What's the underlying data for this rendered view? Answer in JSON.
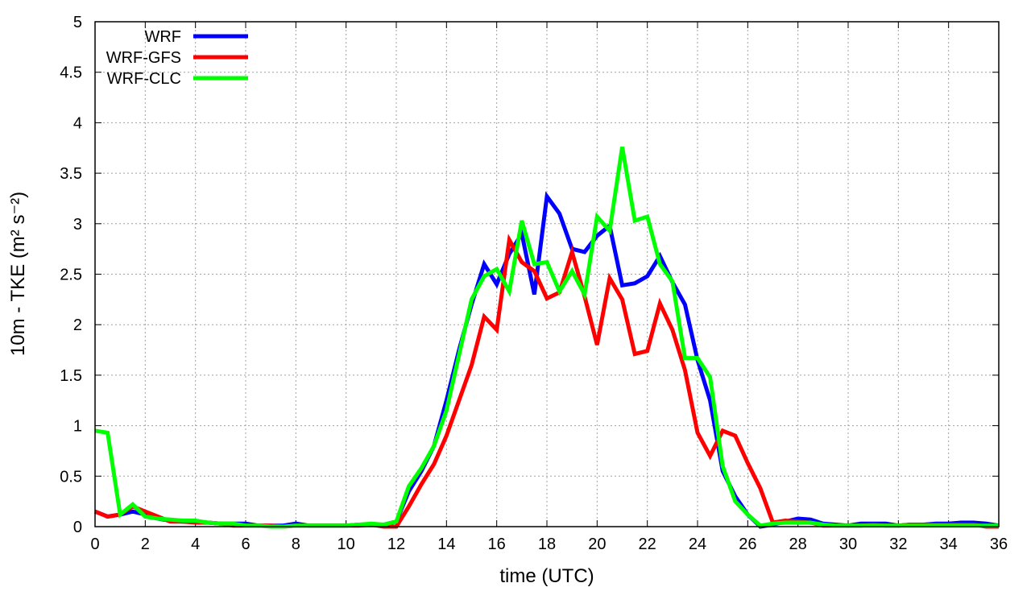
{
  "chart_data": {
    "type": "line",
    "xlabel": "time (UTC)",
    "ylabel": "10m - TKE (m² s⁻²)",
    "xlim": [
      0,
      36
    ],
    "ylim": [
      0,
      5
    ],
    "xticks": [
      0,
      2,
      4,
      6,
      8,
      10,
      12,
      14,
      16,
      18,
      20,
      22,
      24,
      26,
      28,
      30,
      32,
      34,
      36
    ],
    "yticks": [
      "0",
      "0.5",
      "1",
      "1.5",
      "2",
      "2.5",
      "3",
      "3.5",
      "4",
      "4.5",
      "5"
    ],
    "grid": true,
    "legend_position": "top-left",
    "x_step": 0.5,
    "series": [
      {
        "name": "WRF",
        "color": "#0000ff",
        "values": [
          0.15,
          0.1,
          0.12,
          0.15,
          0.12,
          0.08,
          0.06,
          0.05,
          0.05,
          0.04,
          0.03,
          0.03,
          0.03,
          0.01,
          0.01,
          0.01,
          0.03,
          0.01,
          0.01,
          0.01,
          0.01,
          0.02,
          0.02,
          0.02,
          0.05,
          0.35,
          0.55,
          0.8,
          1.25,
          1.75,
          2.2,
          2.6,
          2.4,
          2.7,
          2.9,
          2.3,
          3.27,
          3.1,
          2.75,
          2.72,
          2.88,
          2.98,
          2.39,
          2.41,
          2.48,
          2.68,
          2.42,
          2.2,
          1.65,
          1.25,
          0.55,
          0.3,
          0.12,
          0.0,
          0.02,
          0.05,
          0.08,
          0.07,
          0.03,
          0.02,
          0.01,
          0.03,
          0.03,
          0.03,
          0.01,
          0.02,
          0.02,
          0.03,
          0.03,
          0.04,
          0.04,
          0.03,
          0.01
        ]
      },
      {
        "name": "WRF-GFS",
        "color": "#ff0000",
        "values": [
          0.15,
          0.1,
          0.12,
          0.2,
          0.15,
          0.1,
          0.05,
          0.05,
          0.04,
          0.04,
          0.03,
          0.01,
          0.01,
          0.01,
          0.01,
          0.0,
          0.01,
          0.01,
          0.01,
          0.01,
          0.01,
          0.01,
          0.02,
          0.0,
          0.0,
          0.2,
          0.42,
          0.62,
          0.9,
          1.25,
          1.6,
          2.08,
          1.95,
          2.84,
          2.62,
          2.53,
          2.26,
          2.32,
          2.72,
          2.28,
          1.8,
          2.46,
          2.25,
          1.71,
          1.74,
          2.21,
          1.95,
          1.55,
          0.93,
          0.7,
          0.95,
          0.9,
          0.63,
          0.38,
          0.04,
          0.06,
          0.05,
          0.04,
          0.01,
          0.01,
          0.01,
          0.01,
          0.02,
          0.01,
          0.01,
          0.02,
          0.02,
          0.02,
          0.02,
          0.02,
          0.02,
          0.0,
          0.0
        ]
      },
      {
        "name": "WRF-CLC",
        "color": "#00ff00",
        "values": [
          0.95,
          0.93,
          0.12,
          0.22,
          0.1,
          0.08,
          0.07,
          0.06,
          0.06,
          0.04,
          0.03,
          0.03,
          0.01,
          0.01,
          0.0,
          0.0,
          0.01,
          0.01,
          0.01,
          0.01,
          0.01,
          0.02,
          0.03,
          0.02,
          0.05,
          0.4,
          0.58,
          0.8,
          1.15,
          1.7,
          2.25,
          2.48,
          2.55,
          2.33,
          3.03,
          2.6,
          2.62,
          2.33,
          2.53,
          2.3,
          3.07,
          2.93,
          3.76,
          3.03,
          3.07,
          2.6,
          2.43,
          1.67,
          1.67,
          1.48,
          0.6,
          0.25,
          0.12,
          0.01,
          0.03,
          0.04,
          0.04,
          0.04,
          0.02,
          0.01,
          0.01,
          0.01,
          0.01,
          0.01,
          0.01,
          0.01,
          0.01,
          0.01,
          0.01,
          0.01,
          0.01,
          0.01,
          0.01
        ]
      }
    ]
  }
}
